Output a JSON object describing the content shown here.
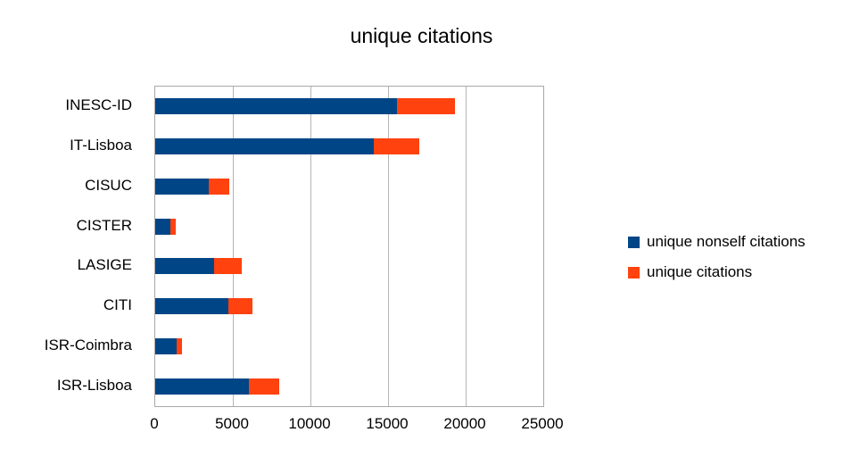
{
  "chart_data": {
    "type": "bar",
    "orientation": "horizontal",
    "stacked": true,
    "title": "unique citations",
    "categories": [
      "INESC-ID",
      "IT-Lisboa",
      "CISUC",
      "CISTER",
      "LASIGE",
      "CITI",
      "ISR-Coimbra",
      "ISR-Lisboa"
    ],
    "series": [
      {
        "name": "unique nonself citations",
        "color": "#004586",
        "values": [
          15600,
          14100,
          3450,
          950,
          3800,
          4700,
          1400,
          6050
        ]
      },
      {
        "name": "unique citations",
        "color": "#FF420E",
        "values": [
          3700,
          2900,
          1300,
          350,
          1800,
          1550,
          330,
          1950
        ]
      }
    ],
    "stacked_totals": [
      19300,
      17000,
      4750,
      1300,
      5600,
      6250,
      1730,
      8000
    ],
    "xlabel": "",
    "ylabel": "",
    "xlim": [
      0,
      25000
    ],
    "x_ticks": [
      0,
      5000,
      10000,
      15000,
      20000,
      25000
    ],
    "grid": "vertical",
    "legend_position": "right",
    "colors": {
      "plot_border": "#a9a9a9",
      "gridline": "#b5b5b5",
      "background": "#ffffff",
      "text": "#000000"
    }
  }
}
